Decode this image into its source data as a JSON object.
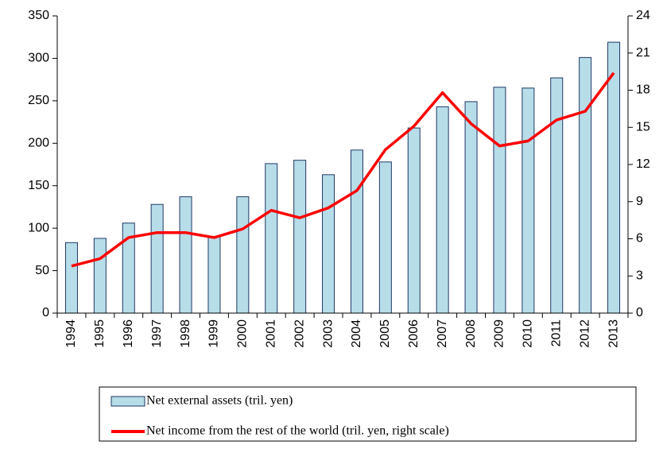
{
  "chart_data": {
    "type": "bar-line",
    "categories": [
      "1994",
      "1995",
      "1996",
      "1997",
      "1998",
      "1999",
      "2000",
      "2001",
      "2002",
      "2003",
      "2004",
      "2005",
      "2006",
      "2007",
      "2008",
      "2009",
      "2010",
      "2011",
      "2012",
      "2013"
    ],
    "series": [
      {
        "name": "Net external assets (tril.  yen)",
        "type": "bar",
        "color": "#b7dde8",
        "values": [
          83,
          88,
          106,
          128,
          137,
          90,
          137,
          176,
          180,
          163,
          192,
          178,
          218,
          243,
          249,
          266,
          265,
          277,
          301,
          319
        ]
      },
      {
        "name": "Net income from the rest of the world (tril.  yen, right scale)",
        "type": "line",
        "axis": "y2",
        "color": "#ff0000",
        "values": [
          3.8,
          4.4,
          6.1,
          6.5,
          6.5,
          6.1,
          6.8,
          8.3,
          7.7,
          8.5,
          9.9,
          13.2,
          15.1,
          17.8,
          15.3,
          13.5,
          13.9,
          15.6,
          16.3,
          19.4
        ]
      }
    ],
    "ylim": [
      0,
      350
    ],
    "yticks": [
      0,
      50,
      100,
      150,
      200,
      250,
      300,
      350
    ],
    "y2lim": [
      0,
      24
    ],
    "y2ticks": [
      0,
      3,
      6,
      9,
      12,
      15,
      18,
      21,
      24
    ],
    "grid": false,
    "legend": "bottom"
  }
}
